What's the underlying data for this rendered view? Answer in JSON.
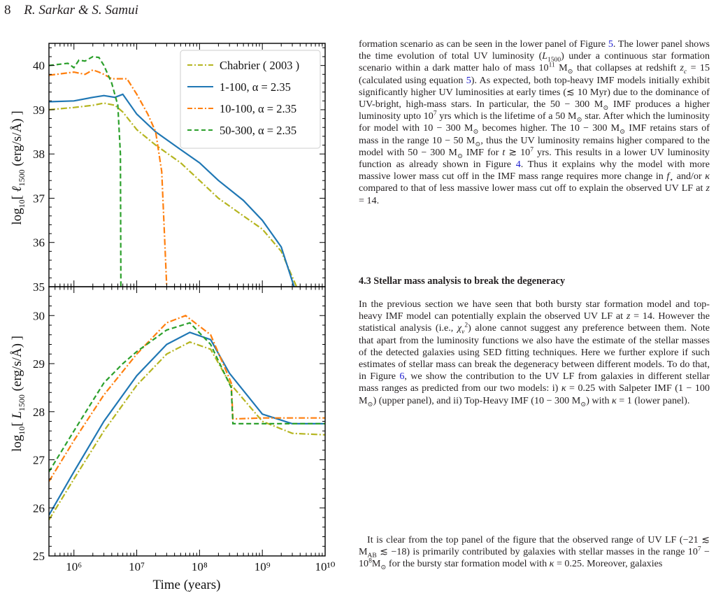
{
  "header": {
    "page_number": "8",
    "authors": "R. Sarkar & S. Samui"
  },
  "figure": {
    "x_axis_label": "Time (years)",
    "upper_y_label": "log10[ ℓ1500 (erg/s/Å) ]",
    "lower_y_label": "log10[ L1500 (erg/s/Å) ]",
    "legend": [
      "Chabrier ( 2003 )",
      "1-100, α = 2.35",
      "10-100, α = 2.35",
      "50-300, α = 2.35"
    ],
    "upper_y_ticks": [
      "35",
      "36",
      "37",
      "38",
      "39",
      "40"
    ],
    "lower_y_ticks": [
      "25",
      "26",
      "27",
      "28",
      "29",
      "30"
    ],
    "x_ticks": [
      "10^6",
      "10^7",
      "10^8",
      "10^9",
      "10^10"
    ]
  },
  "chart_data": [
    {
      "type": "line",
      "panel": "upper",
      "xlabel": "Time (years)",
      "ylabel": "log10[ ℓ1500 (erg/s/Å) ]",
      "xscale": "log",
      "xlim": [
        400000,
        10000000000
      ],
      "ylim": [
        35,
        40.5
      ],
      "legend_position": "top-right",
      "series": [
        {
          "name": "Chabrier ( 2003 )",
          "color": "#b5b520",
          "dash": "dashdot",
          "x": [
            400000,
            1000000,
            2000000,
            3000000,
            4500000,
            6000000,
            10000000,
            20000000,
            50000000,
            100000000,
            200000000,
            500000000,
            1000000000,
            2000000000,
            3500000000
          ],
          "y": [
            39.0,
            39.05,
            39.1,
            39.15,
            39.1,
            38.95,
            38.55,
            38.2,
            37.8,
            37.4,
            37.0,
            36.6,
            36.3,
            35.8,
            35.0
          ]
        },
        {
          "name": "1-100, α = 2.35",
          "color": "#1f77b4",
          "dash": "solid",
          "x": [
            400000,
            1000000,
            2000000,
            3000000,
            4500000,
            6000000,
            10000000,
            20000000,
            50000000,
            100000000,
            200000000,
            500000000,
            1000000000,
            2000000000,
            3200000000
          ],
          "y": [
            39.18,
            39.2,
            39.28,
            39.32,
            39.28,
            39.35,
            38.9,
            38.5,
            38.1,
            37.8,
            37.4,
            36.95,
            36.5,
            35.9,
            35.0
          ]
        },
        {
          "name": "10-100, α = 2.35",
          "color": "#ff7f0e",
          "dash": "dashdot",
          "x": [
            400000,
            1000000,
            1500000,
            2000000,
            2500000,
            3000000,
            4000000,
            5000000,
            7000000,
            10000000,
            15000000,
            20000000,
            25000000,
            28000000,
            30000000
          ],
          "y": [
            39.78,
            39.85,
            39.8,
            39.9,
            39.85,
            39.8,
            39.7,
            39.7,
            39.7,
            39.35,
            38.9,
            38.5,
            37.6,
            36.0,
            35.0
          ]
        },
        {
          "name": "50-300, α = 2.35",
          "color": "#2ca02c",
          "dash": "dashed",
          "x": [
            400000,
            800000,
            1000000,
            1200000,
            1500000,
            2000000,
            2500000,
            3000000,
            4000000,
            5000000,
            5500000,
            5600000
          ],
          "y": [
            40.0,
            40.05,
            39.95,
            40.12,
            40.1,
            40.2,
            40.18,
            40.0,
            39.6,
            39.1,
            38.0,
            35.0
          ]
        }
      ]
    },
    {
      "type": "line",
      "panel": "lower",
      "xlabel": "Time (years)",
      "ylabel": "log10[ L1500 (erg/s/Å) ]",
      "xscale": "log",
      "xlim": [
        400000,
        10000000000
      ],
      "ylim": [
        25,
        30.6
      ],
      "series": [
        {
          "name": "Chabrier ( 2003 )",
          "color": "#b5b520",
          "dash": "dashdot",
          "x": [
            400000,
            1000000,
            3000000,
            10000000,
            30000000,
            70000000,
            150000000,
            300000000,
            1000000000,
            3000000000,
            10000000000
          ],
          "y": [
            25.75,
            26.6,
            27.6,
            28.55,
            29.2,
            29.45,
            29.3,
            28.6,
            27.8,
            27.55,
            27.52
          ]
        },
        {
          "name": "1-100, α = 2.35",
          "color": "#1f77b4",
          "dash": "solid",
          "x": [
            400000,
            1000000,
            3000000,
            10000000,
            30000000,
            70000000,
            150000000,
            300000000,
            1000000000,
            3000000000,
            10000000000
          ],
          "y": [
            25.85,
            26.75,
            27.8,
            28.75,
            29.4,
            29.65,
            29.5,
            28.8,
            27.95,
            27.75,
            27.75
          ]
        },
        {
          "name": "10-100, α = 2.35",
          "color": "#ff7f0e",
          "dash": "dashdot",
          "x": [
            400000,
            1000000,
            3000000,
            10000000,
            30000000,
            60000000,
            150000000,
            320000000,
            340000000,
            1000000000,
            10000000000
          ],
          "y": [
            26.55,
            27.4,
            28.35,
            29.2,
            29.85,
            30.0,
            29.6,
            28.6,
            27.85,
            27.87,
            27.87
          ]
        },
        {
          "name": "50-300, α = 2.35",
          "color": "#2ca02c",
          "dash": "dashed",
          "x": [
            400000,
            1000000,
            3000000,
            6000000,
            10000000,
            30000000,
            70000000,
            150000000,
            320000000,
            340000000,
            1000000000,
            10000000000
          ],
          "y": [
            26.75,
            27.6,
            28.6,
            29.0,
            29.25,
            29.7,
            29.85,
            29.4,
            28.5,
            27.75,
            27.75,
            27.75
          ]
        }
      ]
    }
  ],
  "text": {
    "para1": "formation scenario as can be seen in the lower panel of Figure 5. The lower panel shows the time evolution of total UV luminosity (L1500) under a continuous star formation scenario within a dark matter halo of mass 10^11 M⊙ that collapses at redshift zc = 15 (calculated using equation 5). As expected, both top-heavy IMF models initially exhibit significantly higher UV luminosities at early times (≲ 10 Myr) due to the dominance of UV-bright, high-mass stars. In particular, the 50 − 300 M⊙ IMF produces a higher luminosity upto 10^7 yrs which is the lifetime of a 50 M⊙ star. After which the luminosity for model with 10 − 300 M⊙ becomes higher. The 10 − 300 M⊙ IMF retains stars of mass in the range 10 − 50 M⊙, thus the UV luminosity remains higher compared to the model with 50 − 300 M⊙ IMF for t ≳ 10^7 yrs. This results in a lower UV luminosity function as already shown in Figure 4. Thus it explains why the model with more massive lower mass cut off in the IMF mass range requires more change in f⋆ and/or κ compared to that of less massive lower mass cut off to explain the observed UV LF at z = 14.",
    "section_title": "4.3 Stellar mass analysis to break the degeneracy",
    "para2": "In the previous section we have seen that both bursty star formation model and top-heavy IMF model can potentially explain the observed UV LF at z = 14. However the statistical analysis (i.e., χν²) alone cannot suggest any preference between them. Note that apart from the luminosity functions we also have the estimate of the stellar masses of the detected galaxies using SED fitting techniques. Here we further explore if such estimates of stellar mass can break the degeneracy between different models. To do that, in Figure 6, we show the contribution to the UV LF from galaxies in different stellar mass ranges as predicted from our two models: i) κ = 0.25 with Salpeter IMF (1 − 100 M⊙) (upper panel), and ii) Top-Heavy IMF (10 − 300 M⊙) with κ = 1 (lower panel).",
    "para3": "It is clear from the top panel of the figure that the observed range of UV LF (−21 ≲ MAB ≲ −18) is primarily contributed by galaxies with stellar masses in the range 10^7 − 10^8 M⊙ for the bursty star formation model with κ = 0.25. Moreover, galaxies"
  }
}
